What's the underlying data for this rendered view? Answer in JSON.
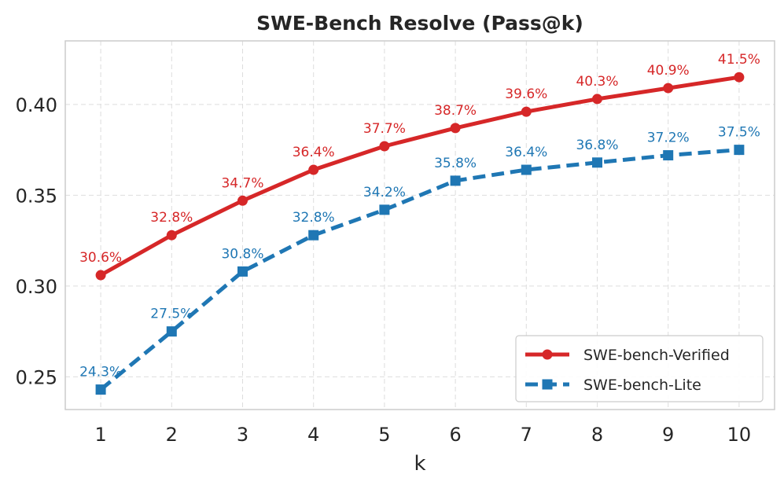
{
  "chart_data": {
    "type": "line",
    "title": "SWE-Bench Resolve (Pass@k)",
    "xlabel": "k",
    "ylabel": "",
    "x": [
      1,
      2,
      3,
      4,
      5,
      6,
      7,
      8,
      9,
      10
    ],
    "xlim": [
      0.5,
      10.5
    ],
    "ylim": [
      0.232,
      0.435
    ],
    "yticks": [
      0.25,
      0.3,
      0.35,
      0.4
    ],
    "ytick_labels": [
      "0.25",
      "0.30",
      "0.35",
      "0.40"
    ],
    "grid": true,
    "legend_position": "lower-right",
    "series": [
      {
        "name": "SWE-bench-Verified",
        "color": "#d62728",
        "line_style": "solid",
        "marker": "circle",
        "values": [
          0.306,
          0.328,
          0.347,
          0.364,
          0.377,
          0.387,
          0.396,
          0.403,
          0.409,
          0.415
        ],
        "labels": [
          "30.6%",
          "32.8%",
          "34.7%",
          "36.4%",
          "37.7%",
          "38.7%",
          "39.6%",
          "40.3%",
          "40.9%",
          "41.5%"
        ]
      },
      {
        "name": "SWE-bench-Lite",
        "color": "#1f77b4",
        "line_style": "dashed",
        "marker": "square",
        "values": [
          0.243,
          0.275,
          0.308,
          0.328,
          0.342,
          0.358,
          0.364,
          0.368,
          0.372,
          0.375
        ],
        "labels": [
          "24.3%",
          "27.5%",
          "30.8%",
          "32.8%",
          "34.2%",
          "35.8%",
          "36.4%",
          "36.8%",
          "37.2%",
          "37.5%"
        ]
      }
    ]
  }
}
